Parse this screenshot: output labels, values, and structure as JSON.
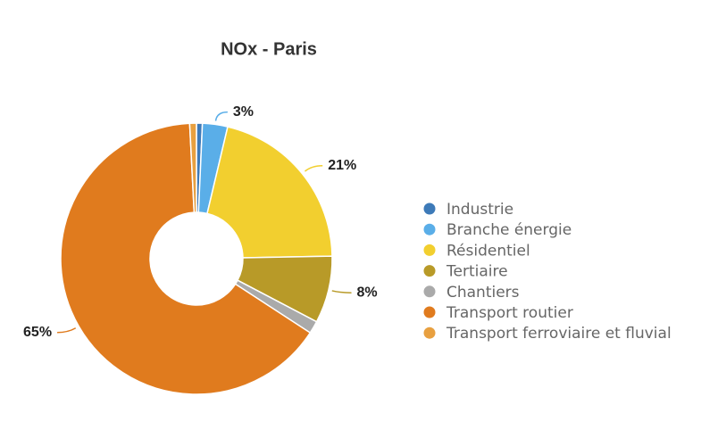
{
  "chart_data": {
    "type": "pie",
    "title": "NOx - Paris",
    "categories": [
      "Industrie",
      "Branche énergie",
      "Résidentiel",
      "Tertiaire",
      "Chantiers",
      "Transport routier",
      "Transport ferroviaire et fluvial"
    ],
    "values": [
      0.7,
      3,
      21,
      8,
      1.5,
      65,
      0.8
    ],
    "value_labels": [
      null,
      "3%",
      "21%",
      "8%",
      null,
      "65%",
      null
    ],
    "colors": [
      "#3d7ab8",
      "#5aaee8",
      "#f2cf2f",
      "#b89a28",
      "#aaaaaa",
      "#e07b1e",
      "#e8a040"
    ],
    "donut": true,
    "legend": "right"
  }
}
